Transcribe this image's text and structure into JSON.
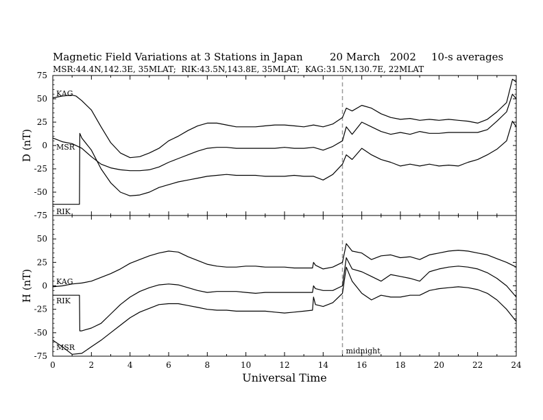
{
  "header": {
    "title": "Magnetic Field Variations at 3 Stations in Japan",
    "date": "20 March   2002",
    "averaging": "10-s averages",
    "stations": "MSR:44.4N,142.3E, 35MLAT;  RIK:43.5N,143.8E, 35MLAT;  KAG:31.5N,130.7E, 22MLAT"
  },
  "colors": {
    "trace": "#000000",
    "marker": "#999999",
    "background": "#ffffff"
  },
  "chart_data": [
    {
      "type": "line",
      "ylabel": "D (nT)",
      "xlim": [
        0,
        24
      ],
      "ylim": [
        -75,
        75
      ],
      "yticks": [
        75,
        50,
        25,
        0,
        -25,
        -50,
        -75
      ],
      "grid": false,
      "series": [
        {
          "name": "KAG",
          "x": [
            0,
            0.5,
            1,
            1.2,
            1.5,
            2,
            2.5,
            3,
            3.5,
            4,
            4.5,
            5,
            5.5,
            6,
            6.5,
            7,
            7.5,
            8,
            8.5,
            9,
            9.5,
            10,
            10.5,
            11,
            11.5,
            12,
            12.5,
            13,
            13.5,
            14,
            14.5,
            15,
            15.2,
            15.5,
            16,
            16.5,
            17,
            17.5,
            18,
            18.5,
            19,
            19.5,
            20,
            20.5,
            21,
            21.5,
            22,
            22.5,
            23,
            23.5,
            23.8,
            24
          ],
          "y": [
            51,
            53,
            54,
            53,
            48,
            38,
            20,
            3,
            -8,
            -13,
            -12,
            -8,
            -3,
            5,
            10,
            16,
            21,
            24,
            24,
            22,
            20,
            20,
            20,
            21,
            22,
            22,
            21,
            20,
            22,
            20,
            23,
            30,
            40,
            37,
            43,
            40,
            34,
            30,
            28,
            29,
            27,
            28,
            27,
            28,
            27,
            26,
            24,
            28,
            36,
            46,
            71,
            68
          ]
        },
        {
          "name": "MSR",
          "x": [
            0,
            0.5,
            1,
            1.5,
            2,
            2.5,
            3,
            3.5,
            4,
            4.5,
            5,
            5.5,
            6,
            6.5,
            7,
            7.5,
            8,
            8.5,
            9,
            9.5,
            10,
            10.5,
            11,
            11.5,
            12,
            12.5,
            13,
            13.5,
            14,
            14.5,
            15,
            15.2,
            15.5,
            16,
            16.5,
            17,
            17.5,
            18,
            18.5,
            19,
            19.5,
            20,
            20.5,
            21,
            21.5,
            22,
            22.5,
            23,
            23.5,
            23.8,
            24
          ],
          "y": [
            8,
            4,
            2,
            -3,
            -12,
            -20,
            -24,
            -26,
            -27,
            -27,
            -26,
            -23,
            -18,
            -14,
            -10,
            -6,
            -3,
            -2,
            -2,
            -3,
            -3,
            -3,
            -3,
            -3,
            -2,
            -3,
            -3,
            -2,
            -5,
            -1,
            5,
            20,
            12,
            25,
            20,
            15,
            12,
            14,
            12,
            15,
            13,
            13,
            14,
            14,
            14,
            14,
            17,
            26,
            36,
            55,
            50
          ]
        },
        {
          "name": "RIK",
          "x": [
            0,
            1.38,
            1.4,
            1.5,
            2,
            2.5,
            3,
            3.5,
            4,
            4.5,
            5,
            5.5,
            6,
            6.5,
            7,
            7.5,
            8,
            8.5,
            9,
            9.5,
            10,
            10.5,
            11,
            11.5,
            12,
            12.5,
            13,
            13.5,
            14,
            14.5,
            15,
            15.2,
            15.5,
            16,
            16.5,
            17,
            17.5,
            18,
            18.5,
            19,
            19.5,
            20,
            20.5,
            21,
            21.5,
            22,
            22.5,
            23,
            23.5,
            23.8,
            24
          ],
          "y": [
            -63,
            -63,
            13,
            8,
            -5,
            -25,
            -40,
            -50,
            -54,
            -53,
            -50,
            -45,
            -42,
            -39,
            -37,
            -35,
            -33,
            -32,
            -31,
            -32,
            -32,
            -32,
            -33,
            -33,
            -33,
            -32,
            -33,
            -33,
            -37,
            -31,
            -20,
            -10,
            -15,
            -3,
            -10,
            -15,
            -18,
            -22,
            -20,
            -22,
            -20,
            -22,
            -21,
            -22,
            -18,
            -15,
            -10,
            -4,
            5,
            26,
            20
          ]
        }
      ]
    },
    {
      "type": "line",
      "ylabel": "H (nT)",
      "xlabel": "Universal Time",
      "xlim": [
        0,
        24
      ],
      "ylim": [
        -75,
        75
      ],
      "yticks": [
        50,
        25,
        0,
        -25,
        -50,
        -75
      ],
      "xticks": [
        0,
        2,
        4,
        6,
        8,
        10,
        12,
        14,
        16,
        18,
        20,
        22,
        24
      ],
      "grid": false,
      "marker": {
        "x": 15,
        "label": "midnight"
      },
      "series": [
        {
          "name": "KAG",
          "x": [
            0,
            0.5,
            1,
            1.5,
            2,
            2.5,
            3,
            3.5,
            4,
            4.5,
            5,
            5.5,
            6,
            6.5,
            7,
            7.5,
            8,
            8.5,
            9,
            9.5,
            10,
            10.5,
            11,
            11.5,
            12,
            12.5,
            13,
            13.45,
            13.5,
            13.6,
            14,
            14.5,
            15,
            15.2,
            15.5,
            16,
            16.5,
            17,
            17.5,
            18,
            18.5,
            19,
            19.5,
            20,
            20.5,
            21,
            21.5,
            22,
            22.5,
            23,
            23.5,
            24
          ],
          "y": [
            -1,
            0,
            2,
            3,
            5,
            9,
            13,
            18,
            24,
            28,
            32,
            35,
            37,
            36,
            31,
            27,
            23,
            21,
            20,
            20,
            21,
            21,
            20,
            20,
            20,
            19,
            19,
            19,
            25,
            22,
            18,
            20,
            25,
            45,
            37,
            35,
            28,
            32,
            33,
            30,
            31,
            28,
            33,
            35,
            37,
            38,
            37,
            35,
            33,
            29,
            25,
            20
          ]
        },
        {
          "name": "RIK",
          "x": [
            0,
            1.38,
            1.4,
            1.5,
            2,
            2.5,
            3,
            3.5,
            4,
            4.5,
            5,
            5.5,
            6,
            6.5,
            7,
            7.5,
            8,
            8.5,
            9,
            9.5,
            10,
            10.5,
            11,
            11.5,
            12,
            12.5,
            13,
            13.45,
            13.5,
            13.6,
            14,
            14.5,
            15,
            15.2,
            15.5,
            16,
            16.5,
            17,
            17.5,
            18,
            18.5,
            19,
            19.5,
            20,
            20.5,
            21,
            21.5,
            22,
            22.5,
            23,
            23.5,
            24
          ],
          "y": [
            -10,
            -10,
            -48,
            -48,
            -45,
            -40,
            -30,
            -20,
            -12,
            -6,
            -2,
            1,
            2,
            1,
            -2,
            -5,
            -7,
            -6,
            -6,
            -6,
            -7,
            -8,
            -7,
            -7,
            -7,
            -7,
            -7,
            -7,
            0,
            -3,
            -5,
            -5,
            0,
            30,
            18,
            15,
            10,
            5,
            12,
            10,
            8,
            5,
            15,
            18,
            20,
            21,
            20,
            18,
            14,
            8,
            0,
            -12
          ]
        },
        {
          "name": "MSR",
          "x": [
            0,
            0.5,
            1,
            1.5,
            2,
            2.5,
            3,
            3.5,
            4,
            4.5,
            5,
            5.5,
            6,
            6.5,
            7,
            7.5,
            8,
            8.5,
            9,
            9.5,
            10,
            10.5,
            11,
            11.5,
            12,
            12.5,
            13,
            13.45,
            13.5,
            13.6,
            14,
            14.5,
            15,
            15.2,
            15.5,
            16,
            16.5,
            17,
            17.5,
            18,
            18.5,
            19,
            19.5,
            20,
            20.5,
            21,
            21.5,
            22,
            22.5,
            23,
            23.5,
            24
          ],
          "y": [
            -58,
            -65,
            -73,
            -72,
            -65,
            -58,
            -50,
            -42,
            -34,
            -28,
            -24,
            -20,
            -19,
            -19,
            -21,
            -23,
            -25,
            -26,
            -26,
            -27,
            -27,
            -27,
            -27,
            -28,
            -29,
            -28,
            -27,
            -26,
            -12,
            -20,
            -22,
            -18,
            -8,
            20,
            5,
            -8,
            -15,
            -10,
            -12,
            -12,
            -10,
            -10,
            -5,
            -3,
            -2,
            -1,
            -2,
            -4,
            -8,
            -15,
            -25,
            -38
          ]
        }
      ]
    }
  ]
}
